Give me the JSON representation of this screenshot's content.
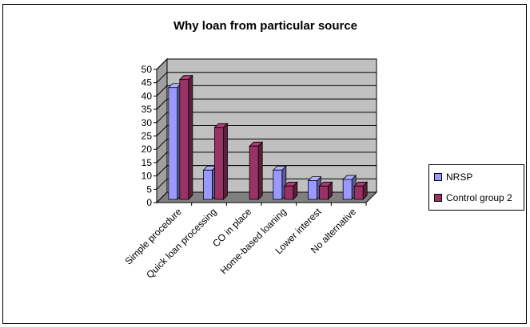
{
  "chart_data": {
    "type": "bar",
    "title": "Why loan from particular source",
    "categories": [
      "Simple procedure",
      "Quick loan processing",
      "CO in place",
      "Home-based loaning",
      "Lower interest",
      "No alternative"
    ],
    "series": [
      {
        "name": "NRSP",
        "values": [
          42,
          11,
          0,
          11,
          7,
          7.5
        ],
        "color": "#9999ff"
      },
      {
        "name": "Control group 2",
        "values": [
          45,
          27,
          20,
          5,
          5,
          5
        ],
        "color": "#993366"
      }
    ],
    "ylim": [
      0,
      50
    ],
    "yticks": [
      0,
      5,
      10,
      15,
      20,
      25,
      30,
      35,
      40,
      45,
      50
    ],
    "grid": true,
    "legend_position": "right",
    "xlabel": "",
    "ylabel": ""
  },
  "colors": {
    "wall": "#c0c0c0",
    "floor": "#808080"
  }
}
